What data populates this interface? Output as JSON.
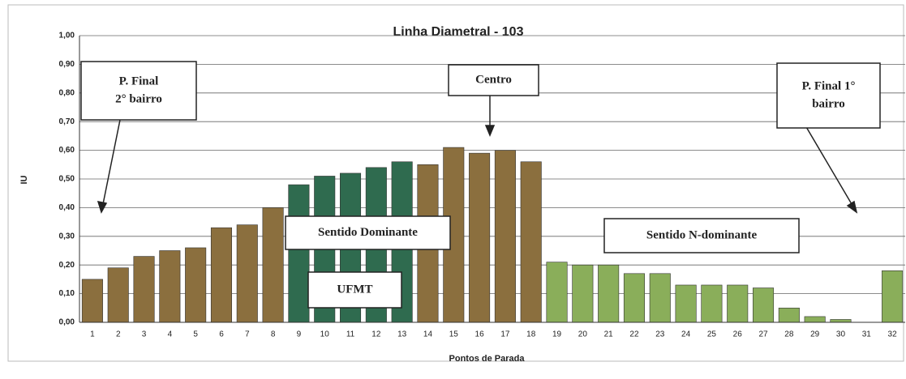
{
  "chart_data": {
    "type": "bar",
    "title": "Linha Diametral - 103",
    "x_label": "Pontos de Parada",
    "y_label": "IU",
    "categories": [
      "1",
      "2",
      "3",
      "4",
      "5",
      "6",
      "7",
      "8",
      "9",
      "10",
      "11",
      "12",
      "13",
      "14",
      "15",
      "16",
      "17",
      "18",
      "19",
      "20",
      "21",
      "22",
      "23",
      "24",
      "25",
      "26",
      "27",
      "28",
      "29",
      "30",
      "31",
      "32"
    ],
    "values": [
      0.15,
      0.19,
      0.23,
      0.25,
      0.26,
      0.33,
      0.34,
      0.4,
      0.48,
      0.51,
      0.52,
      0.54,
      0.56,
      0.55,
      0.61,
      0.59,
      0.6,
      0.56,
      0.21,
      0.2,
      0.2,
      0.17,
      0.17,
      0.13,
      0.13,
      0.13,
      0.12,
      0.05,
      0.02,
      0.01,
      0.0,
      0.18
    ],
    "colors": [
      "#8b6f3e",
      "#8b6f3e",
      "#8b6f3e",
      "#8b6f3e",
      "#8b6f3e",
      "#8b6f3e",
      "#8b6f3e",
      "#8b6f3e",
      "#2f6b4f",
      "#2f6b4f",
      "#2f6b4f",
      "#2f6b4f",
      "#2f6b4f",
      "#8b6f3e",
      "#8b6f3e",
      "#8b6f3e",
      "#8b6f3e",
      "#8b6f3e",
      "#8aae5a",
      "#8aae5a",
      "#8aae5a",
      "#8aae5a",
      "#8aae5a",
      "#8aae5a",
      "#8aae5a",
      "#8aae5a",
      "#8aae5a",
      "#8aae5a",
      "#8aae5a",
      "#8aae5a",
      "#8aae5a",
      "#8aae5a"
    ],
    "ylim": [
      0,
      1
    ],
    "yticks": [
      {
        "value": 0,
        "label": "0,00"
      },
      {
        "value": 0.1,
        "label": "0,10"
      },
      {
        "value": 0.2,
        "label": "0,20"
      },
      {
        "value": 0.3,
        "label": "0,30"
      },
      {
        "value": 0.4,
        "label": "0,40"
      },
      {
        "value": 0.5,
        "label": "0,50"
      },
      {
        "value": 0.6,
        "label": "0,60"
      },
      {
        "value": 0.7,
        "label": "0,70"
      },
      {
        "value": 0.8,
        "label": "0,80"
      },
      {
        "value": 0.9,
        "label": "0,90"
      },
      {
        "value": 1,
        "label": "1,00"
      }
    ],
    "grid": true,
    "annotations": [
      {
        "lines": [
          "P. Final",
          "2° bairro"
        ]
      },
      {
        "lines": [
          "Centro"
        ]
      },
      {
        "lines": [
          "P. Final 1°",
          "bairro"
        ]
      },
      {
        "lines": [
          "Sentido Dominante"
        ]
      },
      {
        "lines": [
          "UFMT"
        ]
      },
      {
        "lines": [
          "Sentido N-dominante"
        ]
      }
    ]
  }
}
